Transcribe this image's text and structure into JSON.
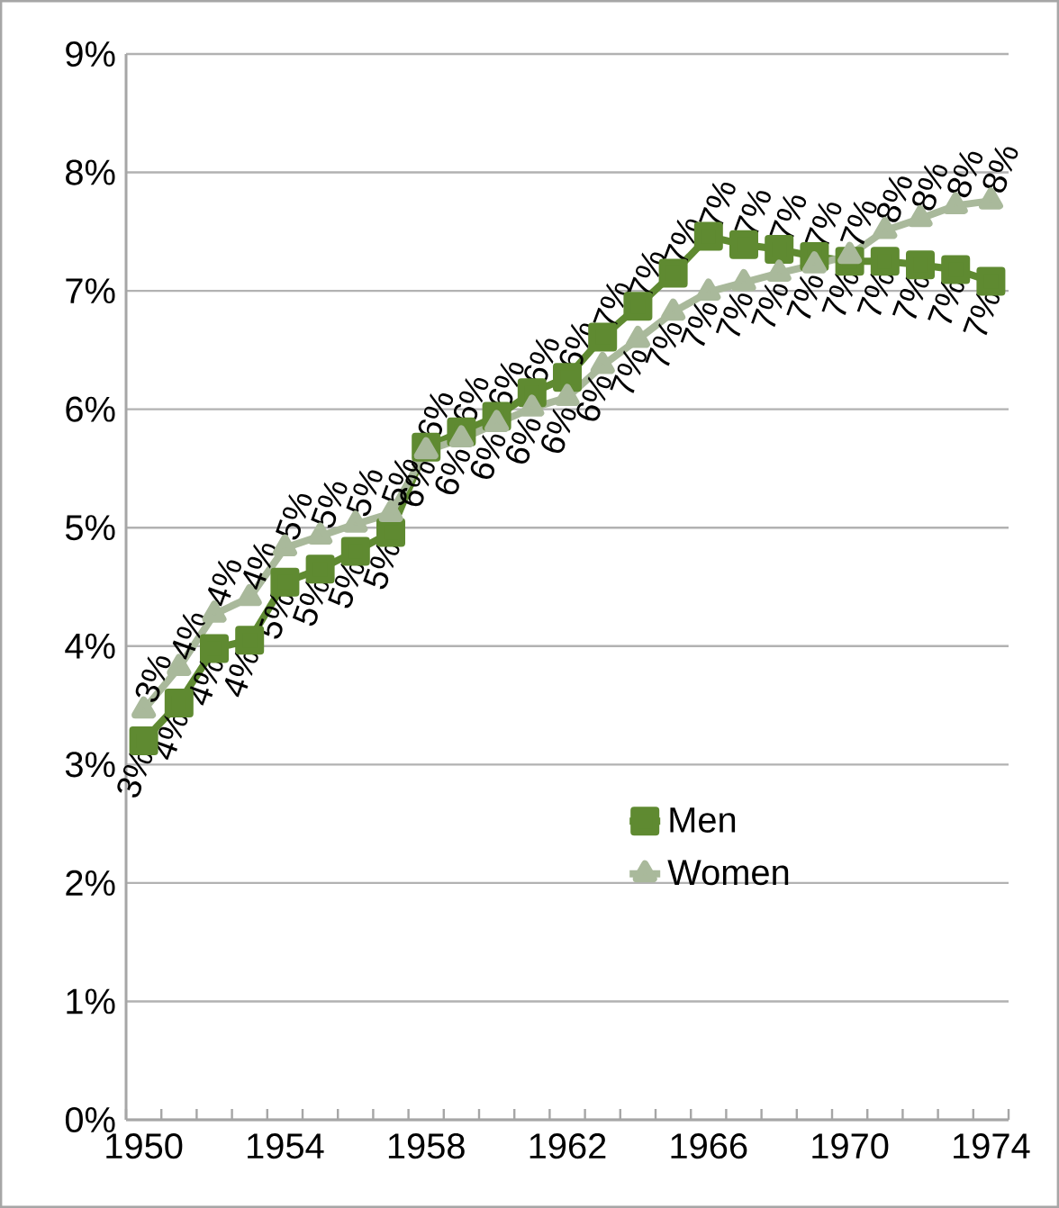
{
  "chart_data": {
    "type": "line",
    "categories": [
      "1950",
      null,
      null,
      null,
      "1954",
      null,
      null,
      null,
      "1958",
      null,
      null,
      null,
      "1962",
      null,
      null,
      null,
      "1966",
      null,
      null,
      null,
      "1970",
      null,
      null,
      null,
      "1974"
    ],
    "ylim": [
      0,
      9
    ],
    "yticks": [
      {
        "value": 0,
        "label": "0%"
      },
      {
        "value": 1,
        "label": "1%"
      },
      {
        "value": 2,
        "label": "2%"
      },
      {
        "value": 3,
        "label": "3%"
      },
      {
        "value": 4,
        "label": "4%"
      },
      {
        "value": 5,
        "label": "5%"
      },
      {
        "value": 6,
        "label": "6%"
      },
      {
        "value": 7,
        "label": "7%"
      },
      {
        "value": 8,
        "label": "8%"
      },
      {
        "value": 9,
        "label": "9%"
      }
    ],
    "grid": "y",
    "legend": "right",
    "line_style": "solid",
    "series": [
      {
        "name": "Men",
        "color": "#5f8a31",
        "marker": "square",
        "values": [
          3.2,
          3.52,
          3.98,
          4.05,
          4.54,
          4.65,
          4.8,
          4.96,
          5.68,
          5.81,
          5.94,
          6.14,
          6.27,
          6.61,
          6.87,
          7.15,
          7.46,
          7.39,
          7.35,
          7.29,
          7.25,
          7.25,
          7.22,
          7.18,
          7.08
        ],
        "value_labels": [
          "3%",
          "4%",
          "4%",
          "4%",
          "5%",
          "5%",
          "5%",
          "5%",
          "6%",
          "6%",
          "6%",
          "6%",
          "6%",
          "7%",
          "7%",
          "7%",
          "7%",
          "7%",
          "7%",
          "7%",
          "7%",
          "7%",
          "7%",
          "7%",
          "7%"
        ]
      },
      {
        "name": "Women",
        "color": "#a9b99b",
        "marker": "triangle",
        "values": [
          3.46,
          3.82,
          4.27,
          4.41,
          4.83,
          4.93,
          5.03,
          5.12,
          5.65,
          5.75,
          5.88,
          6.01,
          6.1,
          6.37,
          6.59,
          6.82,
          6.99,
          7.07,
          7.15,
          7.22,
          7.3,
          7.51,
          7.61,
          7.72,
          7.76
        ],
        "value_labels": [
          "3%",
          "4%",
          "4%",
          "4%",
          "5%",
          "5%",
          "5%",
          "5%",
          "6%",
          "6%",
          "6%",
          "6%",
          "6%",
          "6%",
          "7%",
          "7%",
          "7%",
          "7%",
          "7%",
          "7%",
          "7%",
          "8%",
          "8%",
          "8%",
          "8%"
        ]
      }
    ]
  }
}
